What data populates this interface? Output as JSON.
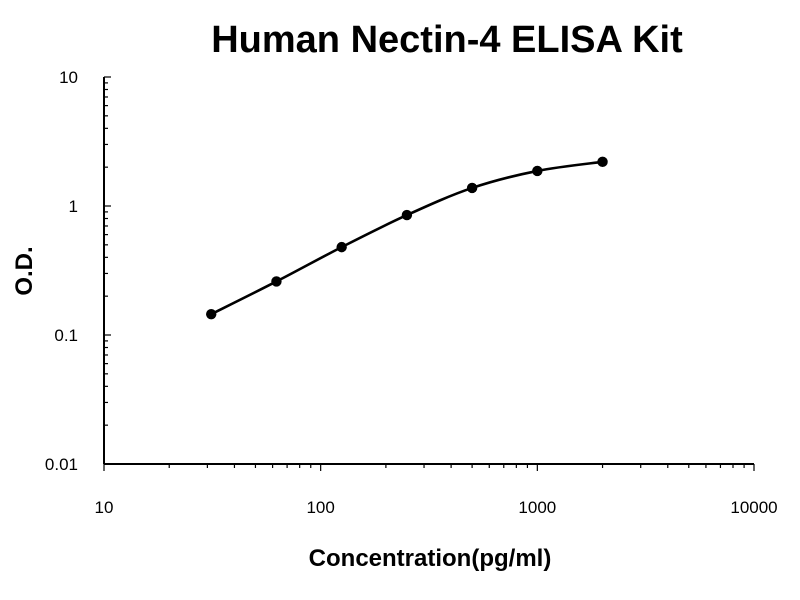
{
  "chart_data": {
    "type": "scatter",
    "title": "Human Nectin-4 ELISA Kit",
    "xlabel": "Concentration(pg/ml)",
    "ylabel": "O.D.",
    "x_scale": "log",
    "y_scale": "log",
    "xlim": [
      10,
      10000
    ],
    "ylim": [
      0.01,
      10
    ],
    "x_tick_labels": [
      "10",
      "100",
      "1000",
      "10000"
    ],
    "y_tick_labels": [
      "10",
      "1",
      "0.1",
      "0.01"
    ],
    "grid": false,
    "legend": "none",
    "line_style": "smooth line with markers",
    "series_color": "#000000",
    "series": [
      {
        "x": [
          31.25,
          62.5,
          125,
          250,
          500,
          1000,
          2000
        ],
        "y": [
          0.145,
          0.26,
          0.48,
          0.85,
          1.38,
          1.87,
          2.2
        ]
      }
    ]
  }
}
